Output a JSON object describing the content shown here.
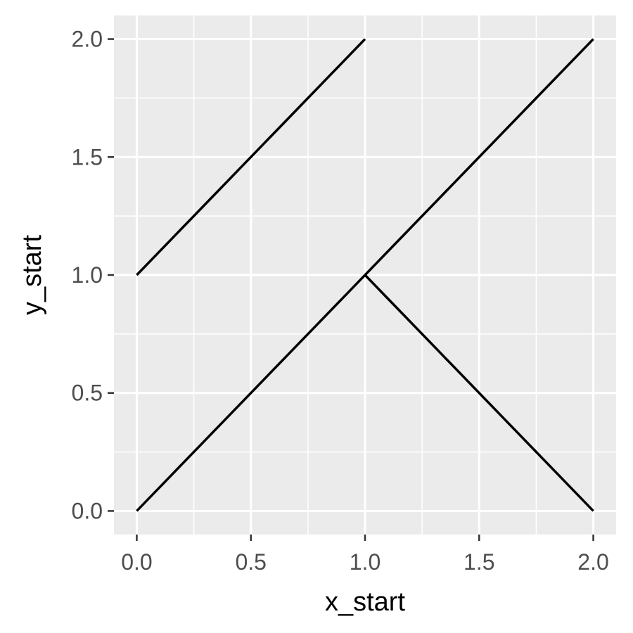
{
  "chart_data": {
    "type": "segment",
    "title": "",
    "xlabel": "x_start",
    "ylabel": "y_start",
    "xlim": [
      -0.1,
      2.1
    ],
    "ylim": [
      -0.1,
      2.1
    ],
    "x_ticks": [
      0.0,
      0.5,
      1.0,
      1.5,
      2.0
    ],
    "y_ticks": [
      0.0,
      0.5,
      1.0,
      1.5,
      2.0
    ],
    "x_tick_labels": [
      "0.0",
      "0.5",
      "1.0",
      "1.5",
      "2.0"
    ],
    "y_tick_labels": [
      "0.0",
      "0.5",
      "1.0",
      "1.5",
      "2.0"
    ],
    "x_minor_ticks": [
      0.25,
      0.75,
      1.25,
      1.75
    ],
    "y_minor_ticks": [
      0.25,
      0.75,
      1.25,
      1.75
    ],
    "grid": true,
    "segments": [
      {
        "x_start": 0,
        "y_start": 0,
        "x_end": 1,
        "y_end": 1
      },
      {
        "x_start": 0,
        "y_start": 1,
        "x_end": 1,
        "y_end": 2
      },
      {
        "x_start": 1,
        "y_start": 1,
        "x_end": 2,
        "y_end": 2
      },
      {
        "x_start": 1,
        "y_start": 1,
        "x_end": 2,
        "y_end": 0
      }
    ],
    "colors": {
      "panel_background": "#EBEBEB",
      "grid": "#FFFFFF",
      "segment": "#000000",
      "tick_label": "#4D4D4D",
      "axis_title": "#000000"
    }
  }
}
